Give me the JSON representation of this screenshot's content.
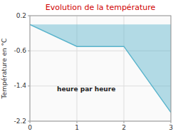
{
  "chart_data": {
    "type": "area",
    "title": "Evolution de la température",
    "xlabel": "heure par heure",
    "ylabel": "Température en °C",
    "x": [
      0,
      1,
      2,
      3
    ],
    "values": [
      0.0,
      -0.5,
      -0.5,
      -2.0
    ],
    "color": "#5ab4cc",
    "xlim": [
      0,
      3
    ],
    "ylim": [
      -2.2,
      0.2
    ],
    "xticks": [
      0,
      1,
      2,
      3
    ],
    "yticks": [
      0.2,
      -0.6,
      -1.4,
      -2.2
    ],
    "grid": true
  }
}
